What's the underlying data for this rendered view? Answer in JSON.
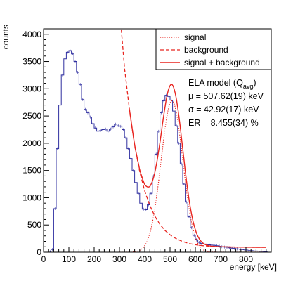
{
  "chart_data": {
    "type": "line",
    "xlabel": "energy [keV]",
    "ylabel": "counts",
    "xlim": [
      0,
      900
    ],
    "ylim": [
      0,
      4100
    ],
    "x_ticks": [
      0,
      100,
      200,
      300,
      400,
      500,
      600,
      700,
      800
    ],
    "y_ticks": [
      0,
      500,
      1000,
      1500,
      2000,
      2500,
      3000,
      3500,
      4000
    ],
    "grid": false,
    "legend_position": "top-right",
    "legend": [
      {
        "label": "signal",
        "style": "dotted",
        "color": "#e8241f"
      },
      {
        "label": "background",
        "style": "dashed",
        "color": "#e8241f"
      },
      {
        "label": "signal + background",
        "style": "solid",
        "color": "#e8241f"
      }
    ],
    "annotations": {
      "model": "ELA model (Q",
      "model_sub": "avg",
      "model_close": ")",
      "mu": "μ = 507.62(19) keV",
      "sigma": "σ = 42.92(17) keV",
      "er": "ER = 8.455(34) %"
    },
    "series": [
      {
        "name": "data",
        "kind": "histogram",
        "color": "#3030a0",
        "x": [
          0,
          20,
          35,
          45,
          55,
          65,
          75,
          85,
          95,
          105,
          115,
          125,
          135,
          145,
          155,
          165,
          175,
          185,
          195,
          205,
          215,
          225,
          235,
          245,
          255,
          265,
          275,
          285,
          295,
          305,
          315,
          325,
          335,
          345,
          355,
          365,
          375,
          385,
          395,
          405,
          415,
          425,
          435,
          445,
          455,
          465,
          475,
          485,
          495,
          505,
          515,
          525,
          535,
          545,
          555,
          565,
          575,
          585,
          595,
          605,
          615,
          625,
          635,
          645,
          655,
          665,
          675,
          685,
          695,
          705,
          715,
          725,
          735,
          745,
          755,
          765,
          780,
          800,
          820,
          840,
          860,
          880
        ],
        "y": [
          0,
          0,
          50,
          800,
          1900,
          2700,
          3250,
          3550,
          3670,
          3700,
          3640,
          3500,
          3300,
          3080,
          2800,
          2620,
          2560,
          2480,
          2360,
          2280,
          2220,
          2230,
          2250,
          2260,
          2220,
          2260,
          2300,
          2350,
          2320,
          2310,
          2250,
          2100,
          1900,
          1720,
          1500,
          1280,
          1080,
          900,
          790,
          780,
          870,
          1080,
          1400,
          1800,
          2220,
          2560,
          2780,
          2880,
          2860,
          2790,
          2590,
          2320,
          2000,
          1620,
          1250,
          920,
          650,
          450,
          310,
          230,
          180,
          160,
          150,
          140,
          135,
          130,
          125,
          120,
          110,
          100,
          95,
          90,
          80,
          75,
          70,
          60,
          50,
          40,
          30,
          20,
          15,
          10
        ]
      },
      {
        "name": "signal",
        "kind": "gaussian",
        "color": "#e8241f",
        "mu": 507.62,
        "sigma": 42.92,
        "amplitude": 2780
      },
      {
        "name": "background",
        "kind": "decay",
        "color": "#e8241f",
        "x": [
          300,
          320,
          340,
          360,
          380,
          400,
          420,
          440,
          460,
          480,
          500,
          520,
          540,
          560,
          580,
          600,
          620,
          640,
          660,
          680,
          700,
          740,
          780,
          820,
          860,
          880
        ],
        "y": [
          4500,
          3380,
          2600,
          1960,
          1480,
          1120,
          860,
          660,
          510,
          400,
          320,
          260,
          215,
          180,
          155,
          138,
          125,
          115,
          108,
          103,
          100,
          96,
          93,
          91,
          90,
          90
        ]
      },
      {
        "name": "signal + background",
        "kind": "sum",
        "color": "#e8241f",
        "x_range": [
          340,
          880
        ]
      }
    ]
  }
}
